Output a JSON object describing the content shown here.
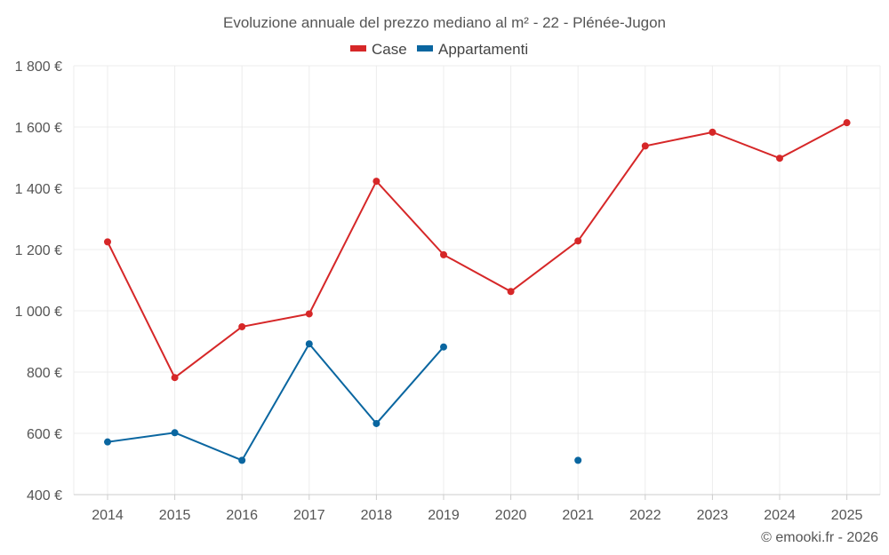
{
  "chart_data": {
    "type": "line",
    "title": "Evoluzione annuale del prezzo mediano al m² - 22 - Plénée-Jugon",
    "xlabel": "",
    "ylabel": "",
    "categories": [
      "2014",
      "2015",
      "2016",
      "2017",
      "2018",
      "2019",
      "2020",
      "2021",
      "2022",
      "2023",
      "2024",
      "2025"
    ],
    "ylim": [
      400,
      1800
    ],
    "yticks": [
      400,
      600,
      800,
      1000,
      1200,
      1400,
      1600,
      1800
    ],
    "ytick_labels": [
      "400 €",
      "600 €",
      "800 €",
      "1 000 €",
      "1 200 €",
      "1 400 €",
      "1 600 €",
      "1 800 €"
    ],
    "grid": true,
    "legend_position": "top-center",
    "series": [
      {
        "name": "Case",
        "color": "#d62728",
        "values": [
          1225,
          782,
          948,
          990,
          1423,
          1183,
          1063,
          1228,
          1538,
          1583,
          1498,
          1614
        ]
      },
      {
        "name": "Appartamenti",
        "color": "#0a66a0",
        "values": [
          572,
          602,
          512,
          892,
          632,
          882,
          null,
          512,
          null,
          null,
          null,
          null
        ]
      }
    ]
  },
  "credit": "© emooki.fr - 2026"
}
